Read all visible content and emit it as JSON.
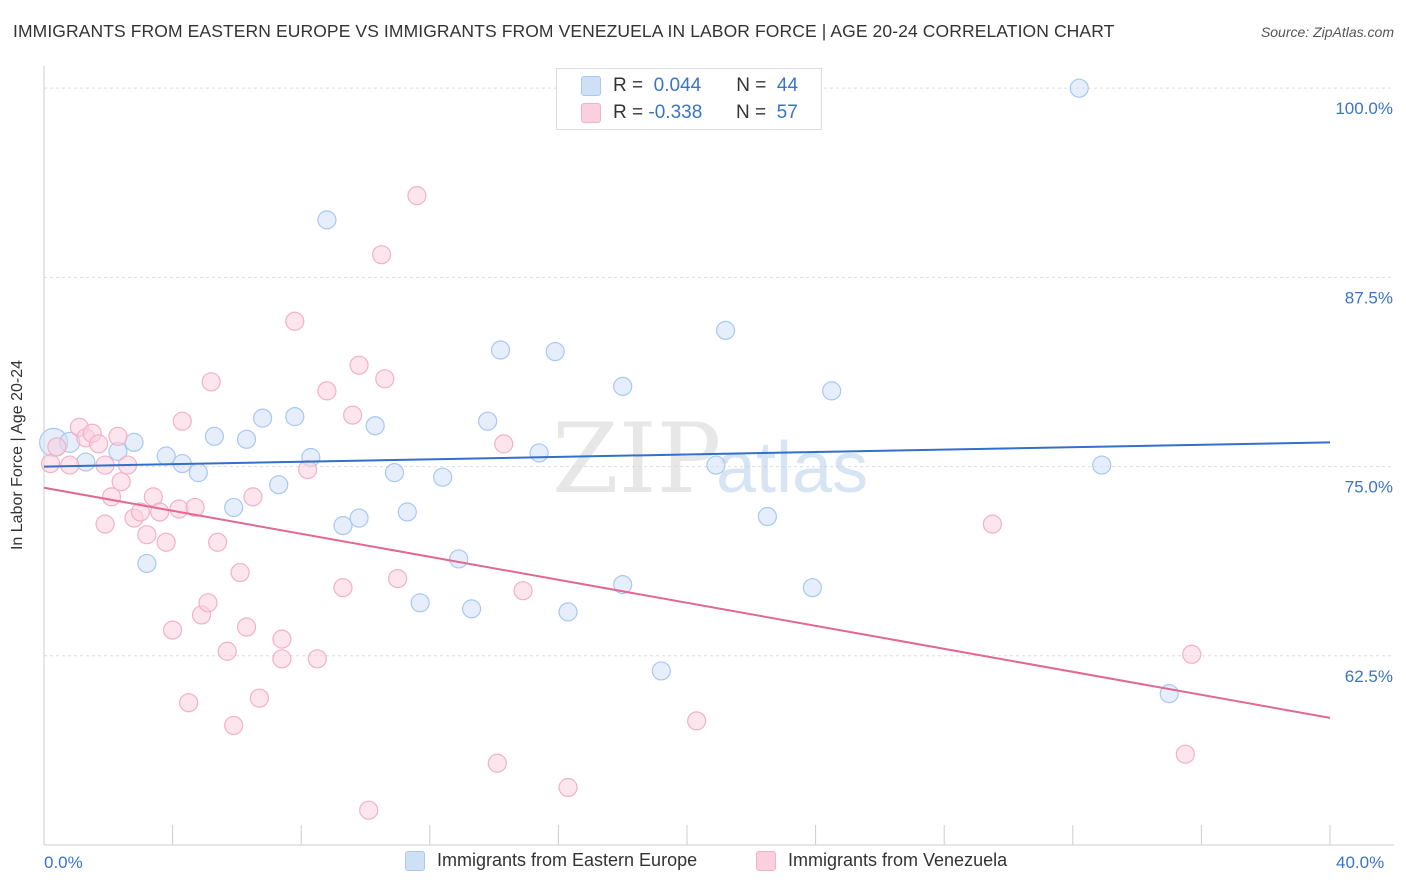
{
  "title": "IMMIGRANTS FROM EASTERN EUROPE VS IMMIGRANTS FROM VENEZUELA IN LABOR FORCE | AGE 20-24 CORRELATION CHART",
  "source": "Source: ZipAtlas.com",
  "legend_top": {
    "rows": [
      {
        "r_label": "R =",
        "r_value": "0.044",
        "n_label": "N =",
        "n_value": "44",
        "color": "#a9c8ef",
        "fill": "#cfe0f6"
      },
      {
        "r_label": "R =",
        "r_value": "-0.338",
        "n_label": "N =",
        "n_value": "57",
        "color": "#f3b0c6",
        "fill": "#fad0de"
      }
    ]
  },
  "legend_bottom": [
    {
      "label": "Immigrants from Eastern Europe",
      "color": "#a9c8ef",
      "fill": "#cfe0f6"
    },
    {
      "label": "Immigrants from Venezuela",
      "color": "#f3b0c6",
      "fill": "#fad0de"
    }
  ],
  "watermark": {
    "zip": "ZIP",
    "atlas": "atlas"
  },
  "colors": {
    "blue_line": "#3370c8",
    "pink_line": "#e06892",
    "axis_text": "#3a74c6",
    "grid": "#dddddd"
  },
  "chart_data": {
    "type": "scatter",
    "title": "IMMIGRANTS FROM EASTERN EUROPE VS IMMIGRANTS FROM VENEZUELA IN LABOR FORCE | AGE 20-24 CORRELATION CHART",
    "xlabel": "",
    "ylabel": "In Labor Force | Age 20-24",
    "xlim": [
      0,
      40
    ],
    "ylim": [
      50,
      101.2
    ],
    "x_tick_labels": [
      "0.0%",
      "40.0%"
    ],
    "y_ticks": [
      62.5,
      75.0,
      87.5,
      100.0
    ],
    "y_tick_labels": [
      "62.5%",
      "75.0%",
      "87.5%",
      "100.0%"
    ],
    "series": [
      {
        "name": "Immigrants from Eastern Europe",
        "color": "#a9c8ef",
        "fill": "#cfe0f6",
        "trend": {
          "x": [
            0,
            40
          ],
          "y": [
            75.0,
            76.6
          ]
        },
        "points": [
          {
            "x": 0.3,
            "y": 76.6,
            "r": 14
          },
          {
            "x": 0.8,
            "y": 76.6,
            "r": 10
          },
          {
            "x": 1.3,
            "y": 75.3,
            "r": 9
          },
          {
            "x": 2.3,
            "y": 76.0,
            "r": 9
          },
          {
            "x": 2.8,
            "y": 76.6,
            "r": 9
          },
          {
            "x": 3.2,
            "y": 68.6,
            "r": 9
          },
          {
            "x": 3.8,
            "y": 75.7,
            "r": 9
          },
          {
            "x": 4.3,
            "y": 75.2,
            "r": 9
          },
          {
            "x": 4.8,
            "y": 74.6,
            "r": 9
          },
          {
            "x": 5.3,
            "y": 77.0,
            "r": 9
          },
          {
            "x": 5.9,
            "y": 72.3,
            "r": 9
          },
          {
            "x": 6.3,
            "y": 76.8,
            "r": 9
          },
          {
            "x": 6.8,
            "y": 78.2,
            "r": 9
          },
          {
            "x": 7.3,
            "y": 73.8,
            "r": 9
          },
          {
            "x": 7.8,
            "y": 78.3,
            "r": 9
          },
          {
            "x": 8.3,
            "y": 75.6,
            "r": 9
          },
          {
            "x": 8.8,
            "y": 91.3,
            "r": 9
          },
          {
            "x": 9.3,
            "y": 71.1,
            "r": 9
          },
          {
            "x": 9.8,
            "y": 71.6,
            "r": 9
          },
          {
            "x": 10.3,
            "y": 77.7,
            "r": 9
          },
          {
            "x": 10.9,
            "y": 74.6,
            "r": 9
          },
          {
            "x": 11.3,
            "y": 72.0,
            "r": 9
          },
          {
            "x": 11.7,
            "y": 66.0,
            "r": 9
          },
          {
            "x": 12.4,
            "y": 74.3,
            "r": 9
          },
          {
            "x": 12.9,
            "y": 68.9,
            "r": 9
          },
          {
            "x": 13.3,
            "y": 65.6,
            "r": 9
          },
          {
            "x": 13.8,
            "y": 78.0,
            "r": 9
          },
          {
            "x": 14.2,
            "y": 82.7,
            "r": 9
          },
          {
            "x": 15.4,
            "y": 75.9,
            "r": 9
          },
          {
            "x": 15.9,
            "y": 82.6,
            "r": 9
          },
          {
            "x": 16.3,
            "y": 65.4,
            "r": 9
          },
          {
            "x": 18.0,
            "y": 67.2,
            "r": 9
          },
          {
            "x": 18.0,
            "y": 80.3,
            "r": 9
          },
          {
            "x": 19.2,
            "y": 61.5,
            "r": 9
          },
          {
            "x": 20.9,
            "y": 75.1,
            "r": 9
          },
          {
            "x": 21.2,
            "y": 84.0,
            "r": 9
          },
          {
            "x": 22.5,
            "y": 71.7,
            "r": 9
          },
          {
            "x": 23.9,
            "y": 67.0,
            "r": 9
          },
          {
            "x": 24.5,
            "y": 80.0,
            "r": 9
          },
          {
            "x": 32.2,
            "y": 100.0,
            "r": 9
          },
          {
            "x": 32.9,
            "y": 75.1,
            "r": 9
          },
          {
            "x": 35.0,
            "y": 60.0,
            "r": 9
          }
        ]
      },
      {
        "name": "Immigrants from Venezuela",
        "color": "#f3b0c6",
        "fill": "#fad0de",
        "trend": {
          "x": [
            0,
            40
          ],
          "y": [
            73.6,
            58.4
          ]
        },
        "points": [
          {
            "x": 0.2,
            "y": 75.2,
            "r": 9
          },
          {
            "x": 0.4,
            "y": 76.3,
            "r": 9
          },
          {
            "x": 0.8,
            "y": 75.1,
            "r": 9
          },
          {
            "x": 1.1,
            "y": 77.6,
            "r": 9
          },
          {
            "x": 1.3,
            "y": 76.9,
            "r": 9
          },
          {
            "x": 1.5,
            "y": 77.2,
            "r": 9
          },
          {
            "x": 1.7,
            "y": 76.5,
            "r": 9
          },
          {
            "x": 1.9,
            "y": 75.1,
            "r": 9
          },
          {
            "x": 1.9,
            "y": 71.2,
            "r": 9
          },
          {
            "x": 2.1,
            "y": 73.0,
            "r": 9
          },
          {
            "x": 2.3,
            "y": 77.0,
            "r": 9
          },
          {
            "x": 2.4,
            "y": 74.0,
            "r": 9
          },
          {
            "x": 2.6,
            "y": 75.1,
            "r": 9
          },
          {
            "x": 2.8,
            "y": 71.6,
            "r": 9
          },
          {
            "x": 3.0,
            "y": 72.0,
            "r": 9
          },
          {
            "x": 3.2,
            "y": 70.5,
            "r": 9
          },
          {
            "x": 3.4,
            "y": 73.0,
            "r": 9
          },
          {
            "x": 3.6,
            "y": 72.0,
            "r": 9
          },
          {
            "x": 3.8,
            "y": 70.0,
            "r": 9
          },
          {
            "x": 4.0,
            "y": 64.2,
            "r": 9
          },
          {
            "x": 4.2,
            "y": 72.2,
            "r": 9
          },
          {
            "x": 4.3,
            "y": 78.0,
            "r": 9
          },
          {
            "x": 4.5,
            "y": 59.4,
            "r": 9
          },
          {
            "x": 4.7,
            "y": 72.3,
            "r": 9
          },
          {
            "x": 4.9,
            "y": 65.2,
            "r": 9
          },
          {
            "x": 5.1,
            "y": 66.0,
            "r": 9
          },
          {
            "x": 5.2,
            "y": 80.6,
            "r": 9
          },
          {
            "x": 5.4,
            "y": 70.0,
            "r": 9
          },
          {
            "x": 5.7,
            "y": 62.8,
            "r": 9
          },
          {
            "x": 5.9,
            "y": 57.9,
            "r": 9
          },
          {
            "x": 6.1,
            "y": 68.0,
            "r": 9
          },
          {
            "x": 6.3,
            "y": 64.4,
            "r": 9
          },
          {
            "x": 6.5,
            "y": 73.0,
            "r": 9
          },
          {
            "x": 6.7,
            "y": 59.7,
            "r": 9
          },
          {
            "x": 7.4,
            "y": 63.6,
            "r": 9
          },
          {
            "x": 7.4,
            "y": 62.3,
            "r": 9
          },
          {
            "x": 7.8,
            "y": 84.6,
            "r": 9
          },
          {
            "x": 8.2,
            "y": 74.8,
            "r": 9
          },
          {
            "x": 8.5,
            "y": 62.3,
            "r": 9
          },
          {
            "x": 8.8,
            "y": 80.0,
            "r": 9
          },
          {
            "x": 9.3,
            "y": 67.0,
            "r": 9
          },
          {
            "x": 9.6,
            "y": 78.4,
            "r": 9
          },
          {
            "x": 9.8,
            "y": 81.7,
            "r": 9
          },
          {
            "x": 10.1,
            "y": 52.3,
            "r": 9
          },
          {
            "x": 10.5,
            "y": 89.0,
            "r": 9
          },
          {
            "x": 10.6,
            "y": 80.8,
            "r": 9
          },
          {
            "x": 11.0,
            "y": 67.6,
            "r": 9
          },
          {
            "x": 11.6,
            "y": 92.9,
            "r": 9
          },
          {
            "x": 14.1,
            "y": 55.4,
            "r": 9
          },
          {
            "x": 14.3,
            "y": 76.5,
            "r": 9
          },
          {
            "x": 14.9,
            "y": 66.8,
            "r": 9
          },
          {
            "x": 16.3,
            "y": 53.8,
            "r": 9
          },
          {
            "x": 20.3,
            "y": 58.2,
            "r": 9
          },
          {
            "x": 29.5,
            "y": 71.2,
            "r": 9
          },
          {
            "x": 35.7,
            "y": 62.6,
            "r": 9
          },
          {
            "x": 35.5,
            "y": 56.0,
            "r": 9
          }
        ]
      }
    ]
  }
}
